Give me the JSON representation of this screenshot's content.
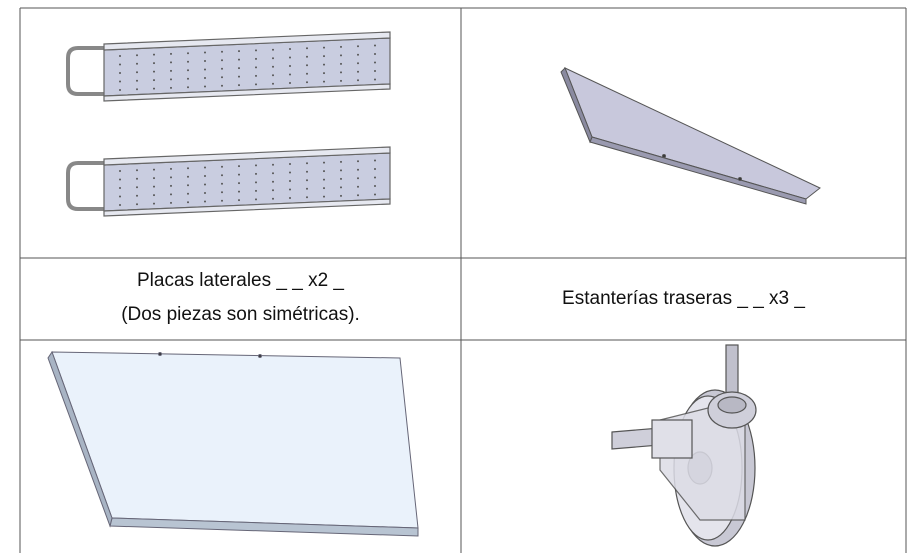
{
  "table": {
    "rows": [
      [
        {
          "lines": [
            "Placas laterales _ _ x2 _",
            "(Dos piezas son simétricas)."
          ]
        },
        {
          "lines": [
            "Estanterías traseras _ _ x3 _"
          ]
        }
      ]
    ]
  }
}
